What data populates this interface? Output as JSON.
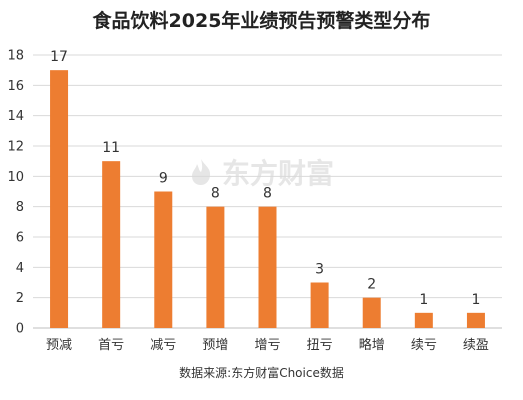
{
  "watermark": {
    "text": "东方财富",
    "icon": "flame-logo-icon"
  },
  "source_note": "数据来源:东方财富Choice数据",
  "chart_data": {
    "type": "bar",
    "title": "食品饮料2025年业绩预告预警类型分布",
    "xlabel": "",
    "ylabel": "",
    "categories": [
      "预减",
      "首亏",
      "减亏",
      "预增",
      "增亏",
      "扭亏",
      "略增",
      "续亏",
      "续盈"
    ],
    "values": [
      17,
      11,
      9,
      8,
      8,
      3,
      2,
      1,
      1
    ],
    "ylim": [
      0,
      18
    ],
    "yticks": [
      0,
      2,
      4,
      6,
      8,
      10,
      12,
      14,
      16,
      18
    ],
    "grid": true,
    "legend": "none",
    "show_data_labels": true,
    "bar_color": "#ED7D31"
  }
}
